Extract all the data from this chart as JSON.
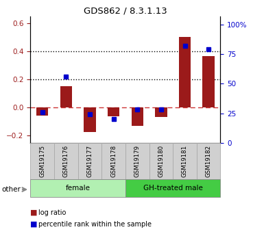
{
  "title": "GDS862 / 8.3.1.13",
  "samples": [
    "GSM19175",
    "GSM19176",
    "GSM19177",
    "GSM19178",
    "GSM19179",
    "GSM19180",
    "GSM19181",
    "GSM19182"
  ],
  "log_ratio": [
    -0.055,
    0.155,
    -0.175,
    -0.06,
    -0.13,
    -0.065,
    0.505,
    0.37
  ],
  "percentile_rank_pct": [
    26,
    56,
    24,
    20,
    28,
    28,
    82,
    79
  ],
  "groups": [
    {
      "label": "female",
      "start": 0,
      "end": 3,
      "color": "#b2f0b2"
    },
    {
      "label": "GH-treated male",
      "start": 4,
      "end": 7,
      "color": "#44cc44"
    }
  ],
  "ylim_left": [
    -0.25,
    0.65
  ],
  "ylim_right": [
    0,
    107
  ],
  "yticks_left": [
    -0.2,
    0.0,
    0.2,
    0.4,
    0.6
  ],
  "yticks_right": [
    0,
    25,
    50,
    75,
    100
  ],
  "bar_color": "#9b1a1a",
  "dot_color": "#0000cc",
  "hline_color": "#cc3333",
  "dotline_color": "black",
  "background_color": "#ffffff",
  "other_label": "other",
  "legend_bar": "log ratio",
  "legend_dot": "percentile rank within the sample"
}
